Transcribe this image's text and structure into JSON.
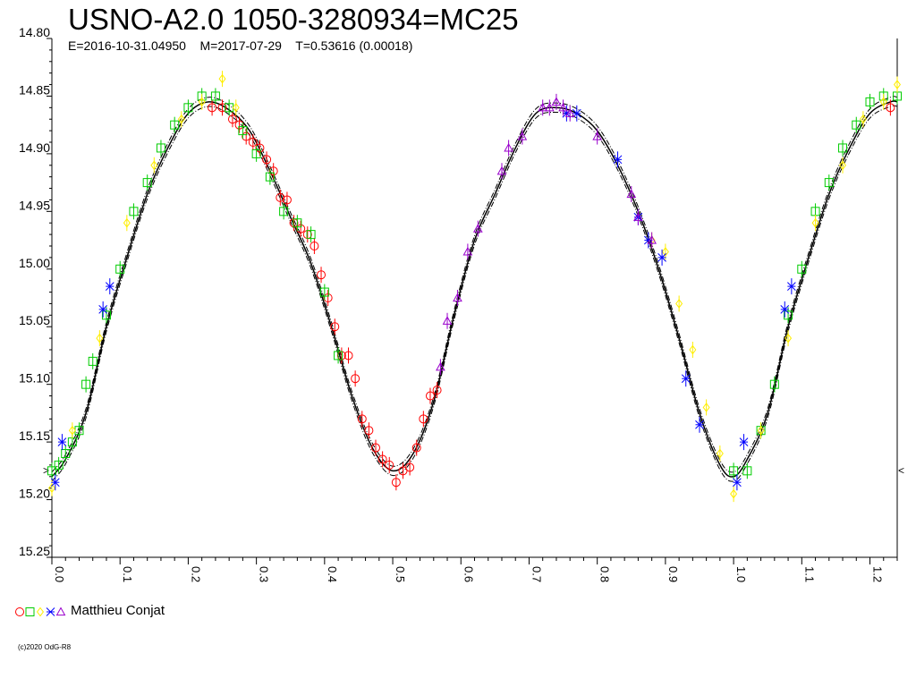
{
  "chart_data": {
    "type": "scatter",
    "title": "USNO-A2.0 1050-3280934=MC25",
    "subtitle": "E=2016-10-31.04950    M=2017-07-29    T=0.53616 (0.00018)",
    "xlabel": "",
    "ylabel": "",
    "xlim": [
      0.0,
      1.24
    ],
    "ylim": [
      14.8,
      15.25
    ],
    "y_inverted": true,
    "y_ticks": [
      "14.80",
      "14.85",
      "14.90",
      "14.95",
      "15.00",
      "15.05",
      "15.10",
      "15.15",
      "15.20",
      "15.25"
    ],
    "x_ticks": [
      "0.0",
      "0.1",
      "0.2",
      "0.3",
      "0.4",
      "0.5",
      "0.6",
      "0.7",
      "0.8",
      "0.9",
      "1.0",
      "1.1",
      "1.2"
    ],
    "side_markers": [
      ">",
      "<"
    ],
    "model_curve": {
      "x": [
        0.0,
        0.02,
        0.05,
        0.08,
        0.11,
        0.14,
        0.17,
        0.2,
        0.23,
        0.26,
        0.29,
        0.32,
        0.35,
        0.38,
        0.41,
        0.44,
        0.47,
        0.5,
        0.53,
        0.56,
        0.59,
        0.62,
        0.65,
        0.68,
        0.71,
        0.74,
        0.77,
        0.8,
        0.83,
        0.86,
        0.89,
        0.92,
        0.95,
        0.98,
        1.0,
        1.02,
        1.05,
        1.08,
        1.11,
        1.14,
        1.17,
        1.2,
        1.23,
        1.24
      ],
      "y": [
        15.18,
        15.165,
        15.125,
        15.05,
        14.99,
        14.935,
        14.895,
        14.865,
        14.855,
        14.862,
        14.88,
        14.915,
        14.955,
        14.995,
        15.05,
        15.11,
        15.155,
        15.175,
        15.16,
        15.115,
        15.04,
        14.975,
        14.935,
        14.895,
        14.865,
        14.86,
        14.865,
        14.88,
        14.91,
        14.95,
        15.0,
        15.06,
        15.125,
        15.17,
        15.18,
        15.165,
        15.125,
        15.05,
        14.99,
        14.935,
        14.895,
        14.865,
        14.855,
        14.855
      ]
    },
    "series": [
      {
        "symbol": "circle",
        "color": "#ff0000",
        "x": [
          0.235,
          0.25,
          0.265,
          0.275,
          0.285,
          0.295,
          0.305,
          0.315,
          0.325,
          0.335,
          0.345,
          0.355,
          0.365,
          0.375,
          0.385,
          0.395,
          0.405,
          0.415,
          0.425,
          0.435,
          0.445,
          0.455,
          0.465,
          0.475,
          0.485,
          0.495,
          0.505,
          0.515,
          0.525,
          0.535,
          0.545,
          0.555,
          0.565,
          1.23
        ],
        "y": [
          14.86,
          14.86,
          14.87,
          14.875,
          14.885,
          14.89,
          14.895,
          14.905,
          14.915,
          14.938,
          14.94,
          14.96,
          14.965,
          14.97,
          14.98,
          15.005,
          15.025,
          15.05,
          15.075,
          15.075,
          15.095,
          15.13,
          15.14,
          15.155,
          15.165,
          15.17,
          15.185,
          15.175,
          15.172,
          15.155,
          15.13,
          15.11,
          15.105,
          14.86
        ]
      },
      {
        "symbol": "square",
        "color": "#00cc00",
        "x": [
          0.0,
          0.01,
          0.02,
          0.03,
          0.04,
          0.05,
          0.06,
          0.08,
          0.1,
          0.12,
          0.14,
          0.16,
          0.18,
          0.2,
          0.22,
          0.24,
          0.26,
          0.28,
          0.3,
          0.32,
          0.34,
          0.36,
          0.38,
          0.4,
          0.42,
          1.0,
          1.02,
          1.04,
          1.06,
          1.08,
          1.1,
          1.12,
          1.14,
          1.16,
          1.18,
          1.2,
          1.22,
          1.24
        ],
        "y": [
          15.175,
          15.17,
          15.16,
          15.15,
          15.14,
          15.1,
          15.08,
          15.04,
          15.0,
          14.95,
          14.925,
          14.895,
          14.875,
          14.86,
          14.85,
          14.85,
          14.86,
          14.88,
          14.9,
          14.92,
          14.95,
          14.96,
          14.97,
          15.02,
          15.075,
          15.175,
          15.175,
          15.14,
          15.1,
          15.04,
          15.0,
          14.95,
          14.925,
          14.895,
          14.875,
          14.855,
          14.85,
          14.85
        ]
      },
      {
        "symbol": "diamond",
        "color": "#ffee00",
        "x": [
          0.0,
          0.03,
          0.07,
          0.11,
          0.15,
          0.19,
          0.22,
          0.25,
          0.27,
          0.88,
          0.9,
          0.92,
          0.94,
          0.96,
          0.98,
          1.0,
          1.04,
          1.08,
          1.12,
          1.16,
          1.19,
          1.22,
          1.24
        ],
        "y": [
          15.19,
          15.14,
          15.06,
          14.96,
          14.91,
          14.87,
          14.855,
          14.835,
          14.86,
          14.975,
          14.985,
          15.03,
          15.07,
          15.12,
          15.16,
          15.195,
          15.14,
          15.06,
          14.96,
          14.91,
          14.87,
          14.855,
          14.84
        ]
      },
      {
        "symbol": "star",
        "color": "#0000ff",
        "x": [
          0.005,
          0.015,
          0.075,
          0.085,
          0.755,
          0.77,
          0.83,
          0.86,
          0.875,
          0.895,
          0.93,
          0.95,
          1.005,
          1.015,
          1.075,
          1.085
        ],
        "y": [
          15.185,
          15.15,
          15.035,
          15.015,
          14.865,
          14.865,
          14.905,
          14.955,
          14.975,
          14.99,
          15.095,
          15.135,
          15.185,
          15.15,
          15.035,
          15.015
        ]
      },
      {
        "symbol": "triangle",
        "color": "#9900cc",
        "x": [
          0.57,
          0.58,
          0.595,
          0.61,
          0.625,
          0.66,
          0.67,
          0.69,
          0.72,
          0.73,
          0.74,
          0.75,
          0.76,
          0.8,
          0.85,
          0.86,
          0.88
        ],
        "y": [
          15.085,
          15.045,
          15.025,
          14.985,
          14.965,
          14.915,
          14.895,
          14.885,
          14.86,
          14.86,
          14.855,
          14.86,
          14.865,
          14.885,
          14.935,
          14.955,
          14.975
        ]
      }
    ]
  },
  "legend": {
    "observer": "Matthieu Conjat"
  },
  "footer": {
    "copyright": "(c)2020 OdG-R8"
  }
}
